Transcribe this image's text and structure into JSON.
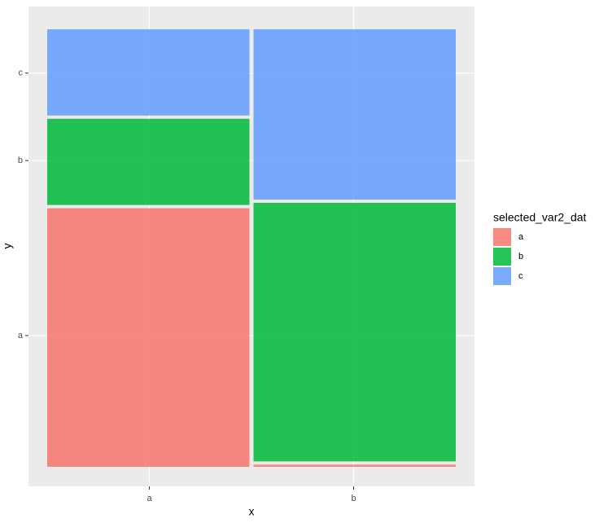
{
  "chart_data": {
    "type": "mosaic",
    "x_label": "x",
    "y_label": "y",
    "categories": [
      "a",
      "b"
    ],
    "widths": [
      0.5,
      0.5
    ],
    "series": [
      {
        "name": "a",
        "color": "#F8766D",
        "values": [
          0.6,
          0.005
        ]
      },
      {
        "name": "b",
        "color": "#00BA38",
        "values": [
          0.2,
          0.6
        ]
      },
      {
        "name": "c",
        "color": "#619CFF",
        "values": [
          0.2,
          0.395
        ]
      }
    ],
    "legend_title": "selected_var2_dat",
    "legend": "right",
    "xlim": [
      0,
      1
    ],
    "ylim": [
      0,
      1
    ],
    "xticks": [
      {
        "value": 0.25,
        "label": "a"
      },
      {
        "value": 0.75,
        "label": "b"
      }
    ],
    "yticks": [
      {
        "value": 0.3,
        "label": "a"
      },
      {
        "value": 0.7,
        "label": "b"
      },
      {
        "value": 0.9,
        "label": "c"
      }
    ],
    "grid": true
  }
}
